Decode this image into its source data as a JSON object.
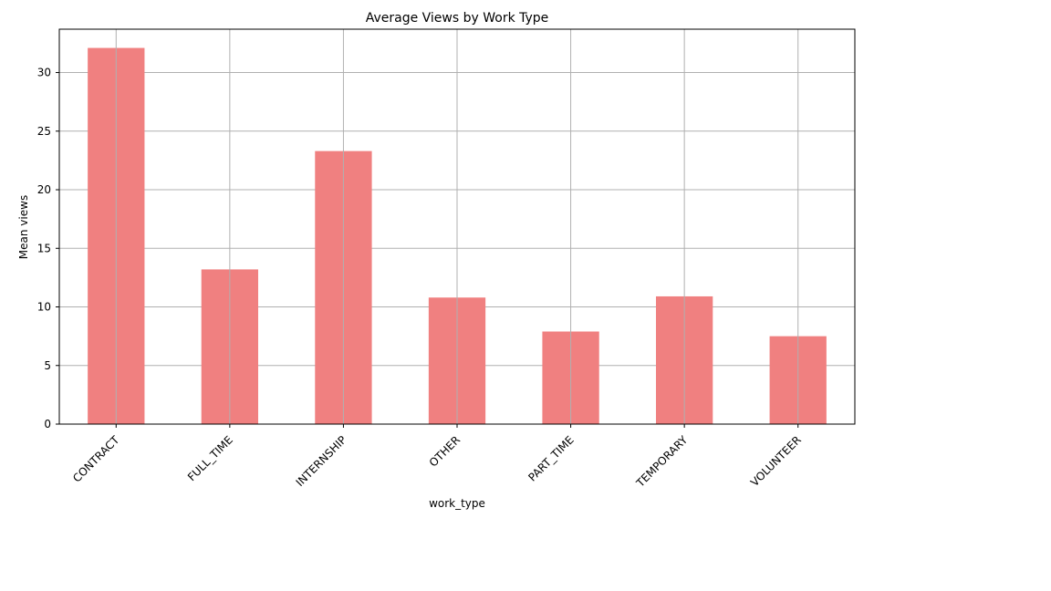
{
  "chart_data": {
    "type": "bar",
    "title": "Average Views by Work Type",
    "xlabel": "work_type",
    "ylabel": "Mean views",
    "categories": [
      "CONTRACT",
      "FULL_TIME",
      "INTERNSHIP",
      "OTHER",
      "PART_TIME",
      "TEMPORARY",
      "VOLUNTEER"
    ],
    "values": [
      32.1,
      13.2,
      23.3,
      10.8,
      7.9,
      10.9,
      7.5
    ],
    "ylim": [
      0,
      33.7
    ],
    "yticks": [
      "0",
      "5",
      "10",
      "15",
      "20",
      "25",
      "30"
    ],
    "grid": true,
    "bar_color": "#f08080"
  }
}
